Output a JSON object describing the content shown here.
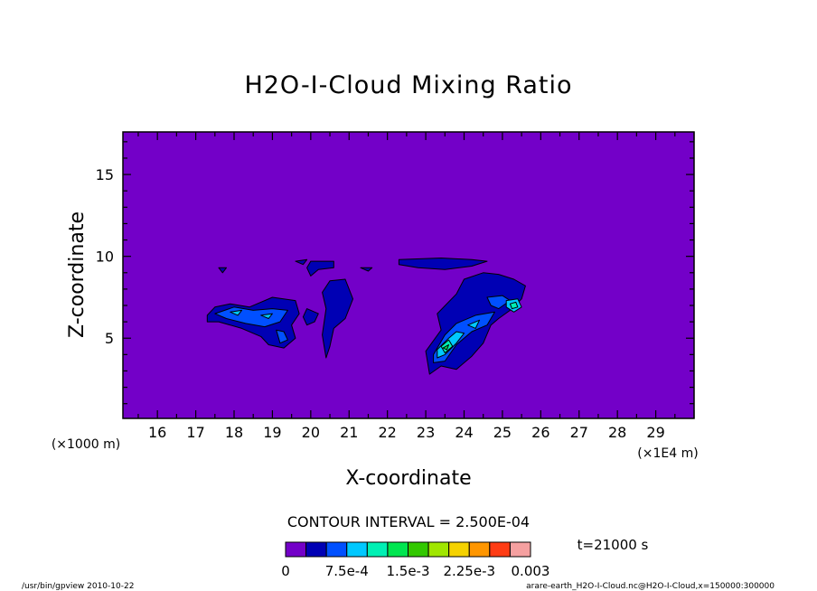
{
  "chart_data": {
    "type": "contour",
    "title": "H2O-I-Cloud Mixing Ratio",
    "xlabel": "X-coordinate",
    "ylabel": "Z-coordinate",
    "x_unit_label": "(×1E4 m)",
    "y_unit_label": "(×1000 m)",
    "xlim": [
      15.1,
      30.0
    ],
    "ylim": [
      0.1,
      17.6
    ],
    "x_ticks": [
      16,
      17,
      18,
      19,
      20,
      21,
      22,
      23,
      24,
      25,
      26,
      27,
      28,
      29
    ],
    "y_ticks": [
      5,
      10,
      15
    ],
    "contour_interval_text": "CONTOUR INTERVAL = 2.500E-04",
    "time_text": "t=21000 s",
    "colorbar": {
      "levels": [
        0,
        0.00025,
        0.0005,
        0.00075,
        0.001,
        0.00125,
        0.0015,
        0.00175,
        0.002,
        0.00225,
        0.0025,
        0.00275,
        0.003
      ],
      "colors": [
        "#7300c8",
        "#0000b4",
        "#0050ff",
        "#00c8ff",
        "#00f0b4",
        "#00e650",
        "#32c800",
        "#a0e600",
        "#f5d200",
        "#ff9600",
        "#ff3c14",
        "#f5a0a0"
      ],
      "labels": [
        "0",
        "7.5e-4",
        "1.5e-3",
        "2.25e-3",
        "0.003"
      ],
      "label_levels": [
        0,
        0.00075,
        0.0015,
        0.00225,
        0.003
      ]
    },
    "background_color": "#7300c8",
    "regions": [
      {
        "level": 1,
        "points": [
          [
            17.3,
            6.4
          ],
          [
            17.5,
            6.9
          ],
          [
            17.9,
            7.1
          ],
          [
            18.4,
            6.9
          ],
          [
            19.0,
            7.5
          ],
          [
            19.6,
            7.3
          ],
          [
            19.7,
            6.5
          ],
          [
            19.5,
            5.8
          ],
          [
            19.6,
            5.0
          ],
          [
            19.3,
            4.4
          ],
          [
            18.9,
            4.6
          ],
          [
            18.7,
            5.1
          ],
          [
            18.2,
            5.6
          ],
          [
            17.6,
            6.0
          ],
          [
            17.3,
            6.0
          ]
        ]
      },
      {
        "level": 1,
        "points": [
          [
            20.5,
            8.5
          ],
          [
            20.9,
            8.6
          ],
          [
            21.1,
            7.4
          ],
          [
            20.9,
            6.2
          ],
          [
            20.6,
            5.6
          ],
          [
            20.5,
            4.5
          ],
          [
            20.4,
            3.8
          ],
          [
            20.3,
            5.2
          ],
          [
            20.4,
            6.8
          ],
          [
            20.3,
            7.8
          ]
        ]
      },
      {
        "level": 1,
        "points": [
          [
            19.9,
            6.8
          ],
          [
            20.2,
            6.5
          ],
          [
            20.1,
            6.0
          ],
          [
            19.9,
            5.8
          ],
          [
            19.8,
            6.3
          ]
        ]
      },
      {
        "level": 1,
        "points": [
          [
            20.0,
            9.7
          ],
          [
            20.6,
            9.7
          ],
          [
            20.6,
            9.3
          ],
          [
            20.2,
            9.2
          ],
          [
            20.0,
            8.8
          ],
          [
            19.9,
            9.3
          ]
        ]
      },
      {
        "level": 1,
        "points": [
          [
            19.6,
            9.7
          ],
          [
            19.9,
            9.8
          ],
          [
            19.8,
            9.5
          ]
        ]
      },
      {
        "level": 1,
        "points": [
          [
            21.3,
            9.3
          ],
          [
            21.6,
            9.3
          ],
          [
            21.5,
            9.1
          ]
        ]
      },
      {
        "level": 1,
        "points": [
          [
            17.6,
            9.3
          ],
          [
            17.8,
            9.3
          ],
          [
            17.7,
            9.0
          ]
        ]
      },
      {
        "level": 1,
        "points": [
          [
            22.3,
            9.8
          ],
          [
            23.4,
            9.9
          ],
          [
            24.2,
            9.8
          ],
          [
            24.6,
            9.7
          ],
          [
            24.2,
            9.4
          ],
          [
            23.5,
            9.2
          ],
          [
            22.8,
            9.3
          ],
          [
            22.3,
            9.5
          ]
        ]
      },
      {
        "level": 1,
        "points": [
          [
            23.1,
            2.8
          ],
          [
            23.0,
            4.2
          ],
          [
            23.4,
            5.5
          ],
          [
            23.3,
            6.5
          ],
          [
            23.8,
            7.7
          ],
          [
            24.0,
            8.6
          ],
          [
            24.5,
            9.0
          ],
          [
            24.9,
            8.9
          ],
          [
            25.3,
            8.6
          ],
          [
            25.6,
            8.2
          ],
          [
            25.5,
            7.4
          ],
          [
            25.2,
            6.7
          ],
          [
            24.9,
            6.2
          ],
          [
            24.7,
            5.8
          ],
          [
            24.5,
            4.7
          ],
          [
            24.2,
            3.9
          ],
          [
            23.8,
            3.1
          ],
          [
            23.4,
            3.3
          ]
        ]
      },
      {
        "level": 2,
        "points": [
          [
            17.5,
            6.5
          ],
          [
            18.0,
            6.9
          ],
          [
            18.5,
            6.7
          ],
          [
            19.0,
            6.8
          ],
          [
            19.4,
            6.7
          ],
          [
            19.2,
            6.0
          ],
          [
            18.8,
            5.7
          ],
          [
            18.3,
            5.9
          ],
          [
            17.8,
            6.2
          ]
        ]
      },
      {
        "level": 2,
        "points": [
          [
            19.1,
            5.5
          ],
          [
            19.2,
            4.7
          ],
          [
            19.4,
            4.9
          ],
          [
            19.3,
            5.4
          ]
        ]
      },
      {
        "level": 2,
        "points": [
          [
            23.2,
            4.0
          ],
          [
            23.5,
            5.2
          ],
          [
            23.8,
            5.9
          ],
          [
            24.3,
            6.4
          ],
          [
            24.8,
            6.6
          ],
          [
            24.6,
            5.8
          ],
          [
            24.2,
            5.4
          ],
          [
            23.8,
            4.6
          ],
          [
            23.5,
            3.6
          ],
          [
            23.2,
            3.5
          ]
        ]
      },
      {
        "level": 2,
        "points": [
          [
            24.6,
            7.5
          ],
          [
            25.0,
            7.6
          ],
          [
            25.2,
            7.3
          ],
          [
            24.9,
            6.8
          ],
          [
            24.7,
            7.0
          ]
        ]
      },
      {
        "level": 3,
        "points": [
          [
            17.9,
            6.6
          ],
          [
            18.2,
            6.7
          ],
          [
            18.1,
            6.4
          ]
        ]
      },
      {
        "level": 3,
        "points": [
          [
            18.7,
            6.4
          ],
          [
            19.0,
            6.5
          ],
          [
            18.9,
            6.2
          ]
        ]
      },
      {
        "level": 3,
        "points": [
          [
            23.3,
            4.3
          ],
          [
            23.6,
            5.0
          ],
          [
            23.8,
            5.4
          ],
          [
            24.0,
            5.3
          ],
          [
            23.8,
            4.7
          ],
          [
            23.5,
            4.0
          ],
          [
            23.3,
            3.8
          ]
        ]
      },
      {
        "level": 3,
        "points": [
          [
            25.1,
            7.3
          ],
          [
            25.4,
            7.4
          ],
          [
            25.5,
            6.9
          ],
          [
            25.3,
            6.6
          ],
          [
            25.1,
            6.9
          ]
        ]
      },
      {
        "level": 3,
        "points": [
          [
            24.1,
            5.8
          ],
          [
            24.4,
            6.1
          ],
          [
            24.3,
            5.6
          ]
        ]
      },
      {
        "level": 4,
        "points": [
          [
            23.4,
            4.5
          ],
          [
            23.6,
            4.9
          ],
          [
            23.7,
            4.5
          ],
          [
            23.5,
            4.1
          ]
        ]
      },
      {
        "level": 4,
        "points": [
          [
            25.2,
            7.1
          ],
          [
            25.35,
            7.2
          ],
          [
            25.4,
            6.9
          ],
          [
            25.25,
            6.8
          ]
        ]
      },
      {
        "level": 5,
        "points": [
          [
            23.45,
            4.4
          ],
          [
            23.6,
            4.6
          ],
          [
            23.55,
            4.3
          ]
        ]
      }
    ]
  },
  "footer": {
    "left_text": "/usr/bin/gpview   2010-10-22",
    "right_text": "arare-earth_H2O-I-Cloud.nc@H2O-I-Cloud,x=150000:300000"
  }
}
